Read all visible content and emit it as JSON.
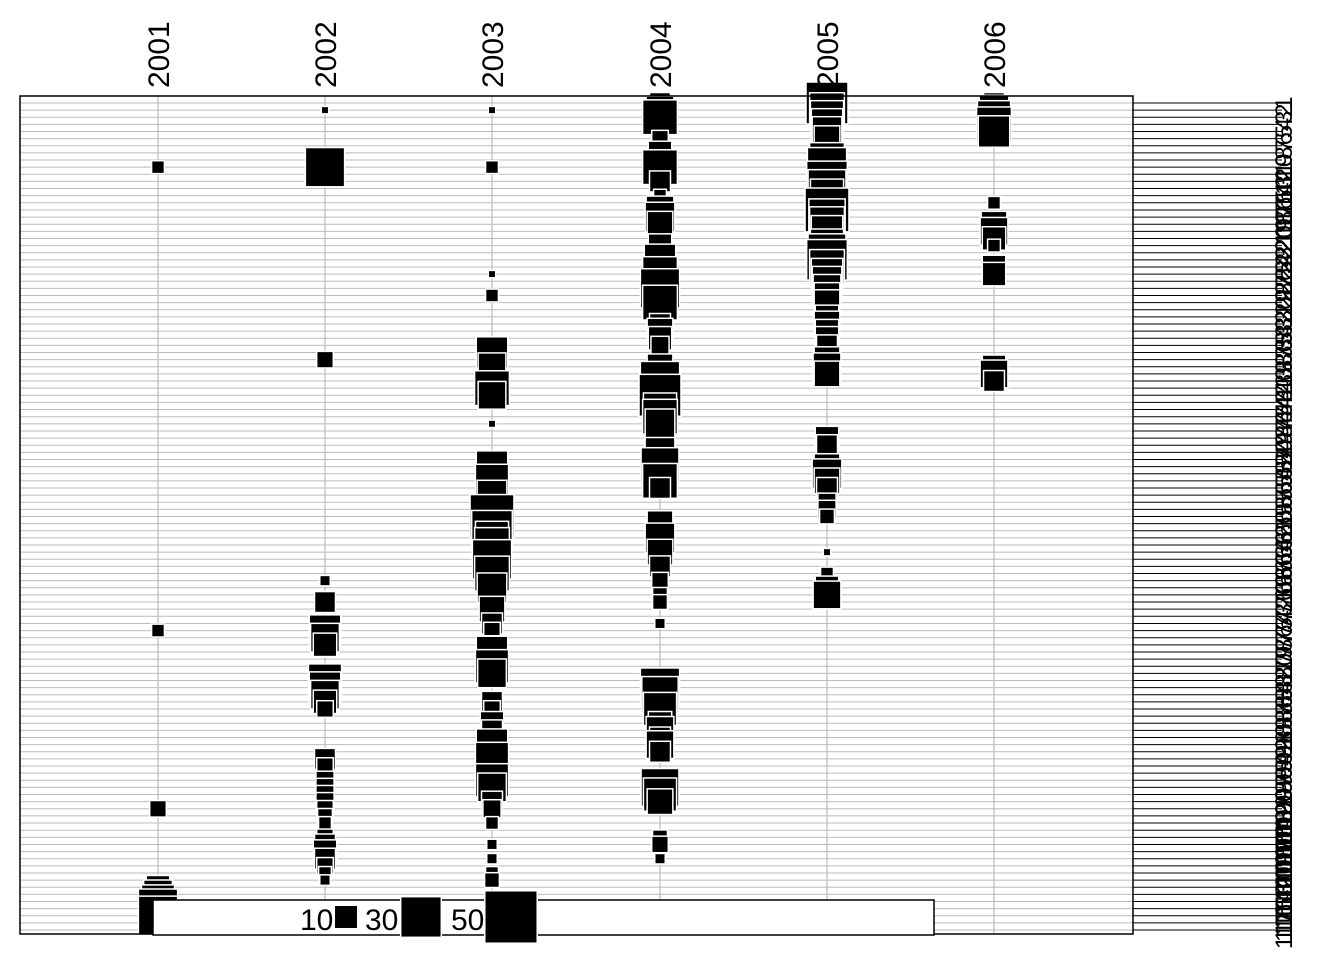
{
  "chart_data": {
    "type": "scatter",
    "columns": [
      "2001",
      "2002",
      "2003",
      "2004",
      "2005",
      "2006"
    ],
    "row_count": 117,
    "row_labels": [
      "1",
      "2",
      "3",
      "4",
      "5",
      "6",
      "7",
      "8",
      "9",
      "10",
      "11",
      "12",
      "13",
      "14",
      "15",
      "16",
      "17",
      "18",
      "19",
      "20",
      "21",
      "22",
      "23",
      "24",
      "25",
      "26",
      "27",
      "28",
      "29",
      "30",
      "31",
      "32",
      "33",
      "34",
      "35",
      "36",
      "37",
      "38",
      "39",
      "40",
      "41",
      "42",
      "43",
      "44",
      "45",
      "46",
      "47",
      "48",
      "49",
      "50",
      "51",
      "52",
      "53",
      "54",
      "55",
      "56",
      "57",
      "58",
      "59",
      "60",
      "61",
      "62",
      "63",
      "64",
      "65",
      "66",
      "67",
      "68",
      "69",
      "70",
      "71",
      "72",
      "73",
      "74",
      "75",
      "76",
      "77",
      "78",
      "79",
      "80",
      "81",
      "82",
      "83",
      "84",
      "85",
      "86",
      "87",
      "88",
      "89",
      "90",
      "91",
      "92",
      "93",
      "94",
      "95",
      "96",
      "97",
      "98",
      "99",
      "100",
      "101",
      "102",
      "103",
      "104",
      "105",
      "106",
      "107",
      "108",
      "109",
      "110",
      "111",
      "112",
      "113",
      "114",
      "115",
      "116",
      "117"
    ],
    "legend": {
      "values": [
        10,
        30,
        50
      ],
      "labels": [
        "10",
        "30",
        "50"
      ],
      "placement": "bottom"
    },
    "size_max": 55,
    "colors": {
      "square": "#000000",
      "square_outline": "#ffffff",
      "grid": "#bbbbbb",
      "frame": "#000000"
    },
    "points": [
      {
        "col": 0,
        "row": 10,
        "value": 3
      },
      {
        "col": 0,
        "row": 75,
        "value": 3
      },
      {
        "col": 0,
        "row": 100,
        "value": 5
      },
      {
        "col": 0,
        "row": 111,
        "value": 10
      },
      {
        "col": 0,
        "row": 112,
        "value": 15
      },
      {
        "col": 0,
        "row": 113,
        "value": 20
      },
      {
        "col": 0,
        "row": 114,
        "value": 28
      },
      {
        "col": 0,
        "row": 115,
        "value": 28
      },
      {
        "col": 1,
        "row": 2,
        "value": 1
      },
      {
        "col": 1,
        "row": 10,
        "value": 28
      },
      {
        "col": 1,
        "row": 37,
        "value": 5
      },
      {
        "col": 1,
        "row": 68,
        "value": 2
      },
      {
        "col": 1,
        "row": 71,
        "value": 8
      },
      {
        "col": 1,
        "row": 75,
        "value": 18
      },
      {
        "col": 1,
        "row": 76,
        "value": 15
      },
      {
        "col": 1,
        "row": 77,
        "value": 10
      },
      {
        "col": 1,
        "row": 82,
        "value": 20
      },
      {
        "col": 1,
        "row": 83,
        "value": 18
      },
      {
        "col": 1,
        "row": 84,
        "value": 15
      },
      {
        "col": 1,
        "row": 85,
        "value": 10
      },
      {
        "col": 1,
        "row": 86,
        "value": 5
      },
      {
        "col": 1,
        "row": 93,
        "value": 8
      },
      {
        "col": 1,
        "row": 94,
        "value": 5
      },
      {
        "col": 1,
        "row": 96,
        "value": 6
      },
      {
        "col": 1,
        "row": 97,
        "value": 6
      },
      {
        "col": 1,
        "row": 98,
        "value": 6
      },
      {
        "col": 1,
        "row": 99,
        "value": 6
      },
      {
        "col": 1,
        "row": 100,
        "value": 5
      },
      {
        "col": 1,
        "row": 101,
        "value": 4
      },
      {
        "col": 1,
        "row": 102,
        "value": 3
      },
      {
        "col": 1,
        "row": 104,
        "value": 5
      },
      {
        "col": 1,
        "row": 105,
        "value": 8
      },
      {
        "col": 1,
        "row": 106,
        "value": 10
      },
      {
        "col": 1,
        "row": 107,
        "value": 8
      },
      {
        "col": 1,
        "row": 108,
        "value": 5
      },
      {
        "col": 1,
        "row": 109,
        "value": 3
      },
      {
        "col": 1,
        "row": 110,
        "value": 2
      },
      {
        "col": 2,
        "row": 2,
        "value": 1
      },
      {
        "col": 2,
        "row": 10,
        "value": 3
      },
      {
        "col": 2,
        "row": 25,
        "value": 1
      },
      {
        "col": 2,
        "row": 28,
        "value": 3
      },
      {
        "col": 2,
        "row": 36,
        "value": 18
      },
      {
        "col": 2,
        "row": 38,
        "value": 14
      },
      {
        "col": 2,
        "row": 40,
        "value": 6
      },
      {
        "col": 2,
        "row": 41,
        "value": 22
      },
      {
        "col": 2,
        "row": 42,
        "value": 14
      },
      {
        "col": 2,
        "row": 46,
        "value": 1
      },
      {
        "col": 2,
        "row": 52,
        "value": 18
      },
      {
        "col": 2,
        "row": 54,
        "value": 20
      },
      {
        "col": 2,
        "row": 56,
        "value": 16
      },
      {
        "col": 2,
        "row": 59,
        "value": 35
      },
      {
        "col": 2,
        "row": 61,
        "value": 30
      },
      {
        "col": 2,
        "row": 62,
        "value": 20
      },
      {
        "col": 2,
        "row": 63,
        "value": 22
      },
      {
        "col": 2,
        "row": 65,
        "value": 28
      },
      {
        "col": 2,
        "row": 67,
        "value": 22
      },
      {
        "col": 2,
        "row": 69,
        "value": 16
      },
      {
        "col": 2,
        "row": 72,
        "value": 12
      },
      {
        "col": 2,
        "row": 74,
        "value": 8
      },
      {
        "col": 2,
        "row": 75,
        "value": 5
      },
      {
        "col": 2,
        "row": 77,
        "value": 6
      },
      {
        "col": 2,
        "row": 78,
        "value": 18
      },
      {
        "col": 2,
        "row": 80,
        "value": 20
      },
      {
        "col": 2,
        "row": 81,
        "value": 15
      },
      {
        "col": 2,
        "row": 85,
        "value": 8
      },
      {
        "col": 2,
        "row": 86,
        "value": 5
      },
      {
        "col": 2,
        "row": 88,
        "value": 10
      },
      {
        "col": 2,
        "row": 89,
        "value": 8
      },
      {
        "col": 2,
        "row": 91,
        "value": 18
      },
      {
        "col": 2,
        "row": 93,
        "value": 20
      },
      {
        "col": 2,
        "row": 96,
        "value": 20
      },
      {
        "col": 2,
        "row": 97,
        "value": 15
      },
      {
        "col": 2,
        "row": 99,
        "value": 8
      },
      {
        "col": 2,
        "row": 100,
        "value": 6
      },
      {
        "col": 2,
        "row": 102,
        "value": 3
      },
      {
        "col": 2,
        "row": 105,
        "value": 2
      },
      {
        "col": 2,
        "row": 107,
        "value": 2
      },
      {
        "col": 2,
        "row": 109,
        "value": 3
      },
      {
        "col": 2,
        "row": 110,
        "value": 4
      },
      {
        "col": 3,
        "row": 1,
        "value": 8
      },
      {
        "col": 3,
        "row": 2,
        "value": 14
      },
      {
        "col": 3,
        "row": 3,
        "value": 22
      },
      {
        "col": 3,
        "row": 6,
        "value": 5
      },
      {
        "col": 3,
        "row": 8,
        "value": 10
      },
      {
        "col": 3,
        "row": 10,
        "value": 22
      },
      {
        "col": 3,
        "row": 12,
        "value": 8
      },
      {
        "col": 3,
        "row": 14,
        "value": 3
      },
      {
        "col": 3,
        "row": 16,
        "value": 14
      },
      {
        "col": 3,
        "row": 17,
        "value": 16
      },
      {
        "col": 3,
        "row": 18,
        "value": 12
      },
      {
        "col": 3,
        "row": 21,
        "value": 10
      },
      {
        "col": 3,
        "row": 23,
        "value": 18
      },
      {
        "col": 3,
        "row": 25,
        "value": 22
      },
      {
        "col": 3,
        "row": 27,
        "value": 28
      },
      {
        "col": 3,
        "row": 29,
        "value": 22
      },
      {
        "col": 3,
        "row": 32,
        "value": 8
      },
      {
        "col": 3,
        "row": 33,
        "value": 12
      },
      {
        "col": 3,
        "row": 34,
        "value": 10
      },
      {
        "col": 3,
        "row": 35,
        "value": 6
      },
      {
        "col": 3,
        "row": 38,
        "value": 12
      },
      {
        "col": 3,
        "row": 40,
        "value": 28
      },
      {
        "col": 3,
        "row": 42,
        "value": 32
      },
      {
        "col": 3,
        "row": 44,
        "value": 20
      },
      {
        "col": 3,
        "row": 45,
        "value": 22
      },
      {
        "col": 3,
        "row": 46,
        "value": 16
      },
      {
        "col": 3,
        "row": 50,
        "value": 16
      },
      {
        "col": 3,
        "row": 52,
        "value": 26
      },
      {
        "col": 3,
        "row": 54,
        "value": 22
      },
      {
        "col": 3,
        "row": 55,
        "value": 8
      },
      {
        "col": 3,
        "row": 60,
        "value": 12
      },
      {
        "col": 3,
        "row": 62,
        "value": 16
      },
      {
        "col": 3,
        "row": 64,
        "value": 12
      },
      {
        "col": 3,
        "row": 66,
        "value": 8
      },
      {
        "col": 3,
        "row": 68,
        "value": 5
      },
      {
        "col": 3,
        "row": 70,
        "value": 4
      },
      {
        "col": 3,
        "row": 71,
        "value": 4
      },
      {
        "col": 3,
        "row": 74,
        "value": 2
      },
      {
        "col": 3,
        "row": 83,
        "value": 28
      },
      {
        "col": 3,
        "row": 84,
        "value": 24
      },
      {
        "col": 3,
        "row": 86,
        "value": 20
      },
      {
        "col": 3,
        "row": 88,
        "value": 10
      },
      {
        "col": 3,
        "row": 89,
        "value": 14
      },
      {
        "col": 3,
        "row": 90,
        "value": 8
      },
      {
        "col": 3,
        "row": 91,
        "value": 14
      },
      {
        "col": 3,
        "row": 92,
        "value": 8
      },
      {
        "col": 3,
        "row": 97,
        "value": 26
      },
      {
        "col": 3,
        "row": 98,
        "value": 20
      },
      {
        "col": 3,
        "row": 99,
        "value": 12
      },
      {
        "col": 3,
        "row": 104,
        "value": 4
      },
      {
        "col": 3,
        "row": 105,
        "value": 5
      },
      {
        "col": 3,
        "row": 107,
        "value": 2
      },
      {
        "col": 4,
        "row": 1,
        "value": 32
      },
      {
        "col": 4,
        "row": 2,
        "value": 22
      },
      {
        "col": 4,
        "row": 3,
        "value": 20
      },
      {
        "col": 4,
        "row": 4,
        "value": 18
      },
      {
        "col": 4,
        "row": 5,
        "value": 16
      },
      {
        "col": 4,
        "row": 6,
        "value": 12
      },
      {
        "col": 4,
        "row": 9,
        "value": 22
      },
      {
        "col": 4,
        "row": 10,
        "value": 28
      },
      {
        "col": 4,
        "row": 12,
        "value": 30
      },
      {
        "col": 4,
        "row": 13,
        "value": 26
      },
      {
        "col": 4,
        "row": 14,
        "value": 20
      },
      {
        "col": 4,
        "row": 16,
        "value": 35
      },
      {
        "col": 4,
        "row": 17,
        "value": 24
      },
      {
        "col": 4,
        "row": 18,
        "value": 22
      },
      {
        "col": 4,
        "row": 19,
        "value": 18
      },
      {
        "col": 4,
        "row": 21,
        "value": 20
      },
      {
        "col": 4,
        "row": 22,
        "value": 26
      },
      {
        "col": 4,
        "row": 23,
        "value": 30
      },
      {
        "col": 4,
        "row": 24,
        "value": 22
      },
      {
        "col": 4,
        "row": 25,
        "value": 18
      },
      {
        "col": 4,
        "row": 26,
        "value": 16
      },
      {
        "col": 4,
        "row": 27,
        "value": 14
      },
      {
        "col": 4,
        "row": 28,
        "value": 12
      },
      {
        "col": 4,
        "row": 29,
        "value": 12
      },
      {
        "col": 4,
        "row": 31,
        "value": 10
      },
      {
        "col": 4,
        "row": 32,
        "value": 12
      },
      {
        "col": 4,
        "row": 33,
        "value": 10
      },
      {
        "col": 4,
        "row": 34,
        "value": 10
      },
      {
        "col": 4,
        "row": 35,
        "value": 8
      },
      {
        "col": 4,
        "row": 37,
        "value": 12
      },
      {
        "col": 4,
        "row": 38,
        "value": 14
      },
      {
        "col": 4,
        "row": 39,
        "value": 12
      },
      {
        "col": 4,
        "row": 48,
        "value": 10
      },
      {
        "col": 4,
        "row": 49,
        "value": 8
      },
      {
        "col": 4,
        "row": 52,
        "value": 12
      },
      {
        "col": 4,
        "row": 53,
        "value": 16
      },
      {
        "col": 4,
        "row": 54,
        "value": 12
      },
      {
        "col": 4,
        "row": 55,
        "value": 8
      },
      {
        "col": 4,
        "row": 57,
        "value": 6
      },
      {
        "col": 4,
        "row": 58,
        "value": 6
      },
      {
        "col": 4,
        "row": 59,
        "value": 4
      },
      {
        "col": 4,
        "row": 64,
        "value": 1
      },
      {
        "col": 4,
        "row": 67,
        "value": 3
      },
      {
        "col": 4,
        "row": 69,
        "value": 10
      },
      {
        "col": 4,
        "row": 70,
        "value": 14
      },
      {
        "col": 5,
        "row": 1,
        "value": 8
      },
      {
        "col": 5,
        "row": 2,
        "value": 16
      },
      {
        "col": 5,
        "row": 3,
        "value": 20
      },
      {
        "col": 5,
        "row": 4,
        "value": 22
      },
      {
        "col": 5,
        "row": 5,
        "value": 18
      },
      {
        "col": 5,
        "row": 15,
        "value": 3
      },
      {
        "col": 5,
        "row": 18,
        "value": 12
      },
      {
        "col": 5,
        "row": 19,
        "value": 14
      },
      {
        "col": 5,
        "row": 20,
        "value": 10
      },
      {
        "col": 5,
        "row": 21,
        "value": 3
      },
      {
        "col": 5,
        "row": 24,
        "value": 10
      },
      {
        "col": 5,
        "row": 25,
        "value": 10
      },
      {
        "col": 5,
        "row": 38,
        "value": 10
      },
      {
        "col": 5,
        "row": 39,
        "value": 14
      },
      {
        "col": 5,
        "row": 40,
        "value": 8
      }
    ]
  }
}
